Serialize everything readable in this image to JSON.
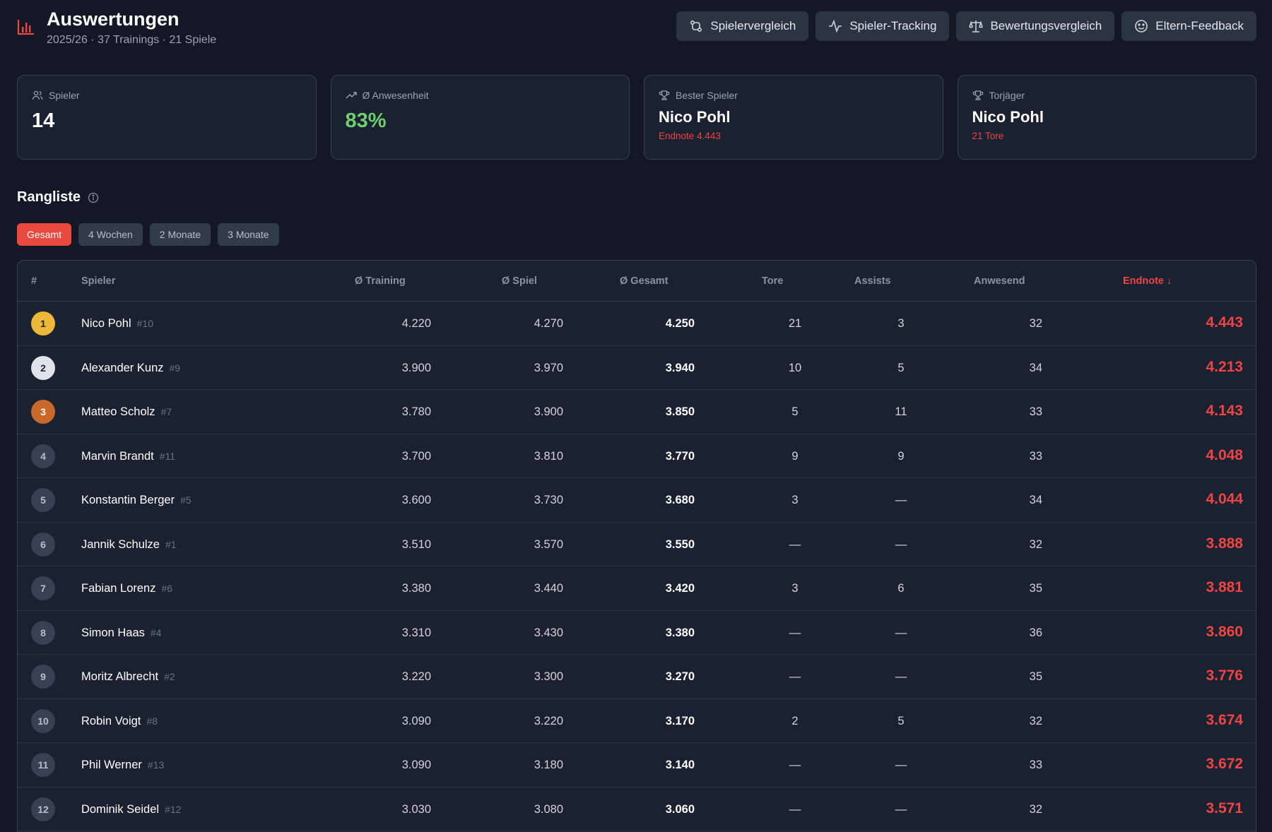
{
  "header": {
    "title": "Auswertungen",
    "subtitle": "2025/26 · 37 Trainings · 21 Spiele",
    "icon": "bar-chart-icon",
    "buttons": [
      {
        "label": "Spielervergleich",
        "icon": "compare-icon"
      },
      {
        "label": "Spieler-Tracking",
        "icon": "activity-icon"
      },
      {
        "label": "Bewertungsvergleich",
        "icon": "scale-icon"
      },
      {
        "label": "Eltern-Feedback",
        "icon": "smile-icon"
      }
    ]
  },
  "stats": {
    "players": {
      "label": "Spieler",
      "value": "14"
    },
    "attendance": {
      "label": "Ø Anwesenheit",
      "value": "83%"
    },
    "best": {
      "label": "Bester Spieler",
      "name": "Nico Pohl",
      "sub": "Endnote 4.443"
    },
    "scorer": {
      "label": "Torjäger",
      "name": "Nico Pohl",
      "sub": "21 Tore"
    }
  },
  "ranking": {
    "title": "Rangliste",
    "filters": [
      "Gesamt",
      "4 Wochen",
      "2 Monate",
      "3 Monate"
    ],
    "active_filter": "Gesamt",
    "columns": {
      "rank": "#",
      "player": "Spieler",
      "training": "Ø Training",
      "game": "Ø Spiel",
      "total": "Ø Gesamt",
      "goals": "Tore",
      "assists": "Assists",
      "present": "Anwesend",
      "final": "Endnote ↓"
    },
    "rows": [
      {
        "rank": "1",
        "name": "Nico Pohl",
        "num": "#10",
        "training": "4.220",
        "game": "4.270",
        "total": "4.250",
        "goals": "21",
        "assists": "3",
        "present": "32",
        "final": "4.443"
      },
      {
        "rank": "2",
        "name": "Alexander Kunz",
        "num": "#9",
        "training": "3.900",
        "game": "3.970",
        "total": "3.940",
        "goals": "10",
        "assists": "5",
        "present": "34",
        "final": "4.213"
      },
      {
        "rank": "3",
        "name": "Matteo Scholz",
        "num": "#7",
        "training": "3.780",
        "game": "3.900",
        "total": "3.850",
        "goals": "5",
        "assists": "11",
        "present": "33",
        "final": "4.143"
      },
      {
        "rank": "4",
        "name": "Marvin Brandt",
        "num": "#11",
        "training": "3.700",
        "game": "3.810",
        "total": "3.770",
        "goals": "9",
        "assists": "9",
        "present": "33",
        "final": "4.048"
      },
      {
        "rank": "5",
        "name": "Konstantin Berger",
        "num": "#5",
        "training": "3.600",
        "game": "3.730",
        "total": "3.680",
        "goals": "3",
        "assists": "—",
        "present": "34",
        "final": "4.044"
      },
      {
        "rank": "6",
        "name": "Jannik Schulze",
        "num": "#1",
        "training": "3.510",
        "game": "3.570",
        "total": "3.550",
        "goals": "—",
        "assists": "—",
        "present": "32",
        "final": "3.888"
      },
      {
        "rank": "7",
        "name": "Fabian Lorenz",
        "num": "#6",
        "training": "3.380",
        "game": "3.440",
        "total": "3.420",
        "goals": "3",
        "assists": "6",
        "present": "35",
        "final": "3.881"
      },
      {
        "rank": "8",
        "name": "Simon Haas",
        "num": "#4",
        "training": "3.310",
        "game": "3.430",
        "total": "3.380",
        "goals": "—",
        "assists": "—",
        "present": "36",
        "final": "3.860"
      },
      {
        "rank": "9",
        "name": "Moritz Albrecht",
        "num": "#2",
        "training": "3.220",
        "game": "3.300",
        "total": "3.270",
        "goals": "—",
        "assists": "—",
        "present": "35",
        "final": "3.776"
      },
      {
        "rank": "10",
        "name": "Robin Voigt",
        "num": "#8",
        "training": "3.090",
        "game": "3.220",
        "total": "3.170",
        "goals": "2",
        "assists": "5",
        "present": "32",
        "final": "3.674"
      },
      {
        "rank": "11",
        "name": "Phil Werner",
        "num": "#13",
        "training": "3.090",
        "game": "3.180",
        "total": "3.140",
        "goals": "—",
        "assists": "—",
        "present": "33",
        "final": "3.672"
      },
      {
        "rank": "12",
        "name": "Dominik Seidel",
        "num": "#12",
        "training": "3.030",
        "game": "3.080",
        "total": "3.060",
        "goals": "—",
        "assists": "—",
        "present": "32",
        "final": "3.571"
      }
    ]
  },
  "colors": {
    "background": "#121826",
    "accent": "#e9493f",
    "green": "#6fcf6f",
    "gold": "#ecb83a",
    "silver": "#dfe3ea",
    "bronze": "#c8692b"
  }
}
